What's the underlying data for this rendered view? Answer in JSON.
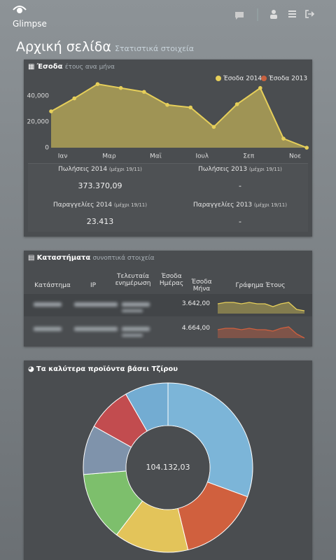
{
  "header": {
    "brand": "Glimpse"
  },
  "page": {
    "title": "Αρχική σελίδα",
    "subtitle": "Στατιστικά στοιχεία"
  },
  "revenue_panel": {
    "title": "Έσοδα",
    "subtitle": "έτους ανα μήνα",
    "chart_data": {
      "type": "area",
      "categories": [
        "Ιαν",
        null,
        "Μαρ",
        null,
        "Μαϊ",
        null,
        "Ιουλ",
        null,
        "Σεπ",
        null,
        "Νοε",
        null
      ],
      "series": [
        {
          "name": "Έσοδα 2014",
          "color": "#e6cf5a",
          "values": [
            28000,
            38000,
            49000,
            46000,
            43000,
            33000,
            31000,
            16000,
            33500,
            46000,
            7000,
            0
          ]
        },
        {
          "name": "Έσοδα 2013",
          "color": "#c8613f",
          "values": [
            null,
            null,
            null,
            null,
            null,
            null,
            null,
            null,
            null,
            null,
            null,
            null
          ]
        }
      ],
      "ylim": [
        0,
        55000
      ],
      "yticks": [
        0,
        {
          "value": 20000,
          "label": "20,000"
        },
        {
          "value": 40000,
          "label": "40,000"
        }
      ],
      "grid": false,
      "legend": "top-right"
    },
    "stats": [
      {
        "label": "Πωλήσεις 2014",
        "note": "(μέχρι 19/11)",
        "value": "373.370,09"
      },
      {
        "label": "Πωλήσεις 2013",
        "note": "(μέχρι 19/11)",
        "value": "-"
      },
      {
        "label": "Παραγγελίες 2014",
        "note": "(μέχρι 19/11)",
        "value": "23.413"
      },
      {
        "label": "Παραγγελίες 2013",
        "note": "(μέχρι 19/11)",
        "value": "-"
      }
    ]
  },
  "stores_panel": {
    "title": "Καταστήματα",
    "subtitle": "συνοπτικά στοιχεία",
    "columns": [
      "Κατάστημα",
      "IP",
      "Τελευταία ενημέρωση",
      "Έσοδα Ημέρας",
      "Έσοδα Μήνα",
      "Γράφημα Έτους"
    ],
    "rows": [
      {
        "month_revenue": "3.642,00",
        "chart_data": {
          "type": "sparkline",
          "color": "#e6cf5a",
          "ylim": [
            0,
            10
          ],
          "values": [
            7,
            8,
            8,
            7,
            8,
            7,
            7,
            5,
            7,
            8,
            3,
            2
          ]
        }
      },
      {
        "month_revenue": "4.664,00",
        "chart_data": {
          "type": "sparkline",
          "color": "#d0603e",
          "ylim": [
            0,
            10
          ],
          "values": [
            6,
            7,
            7,
            6,
            7,
            6,
            6,
            5,
            7,
            8,
            3,
            0
          ]
        }
      }
    ]
  },
  "products_panel": {
    "title": "Τα καλύτερα προϊόντα βάσει Τζίρου",
    "chart_data": {
      "type": "pie",
      "center_label": "104.132,03",
      "values": [
        30.6,
        15.6,
        14.2,
        13.3,
        9.4,
        8.6,
        8.3
      ],
      "colors": [
        "#7cb5d8",
        "#d0603e",
        "#e3c45a",
        "#7dbf6c",
        "#7f93ab",
        "#c24c4f",
        "#73acd2"
      ]
    }
  }
}
